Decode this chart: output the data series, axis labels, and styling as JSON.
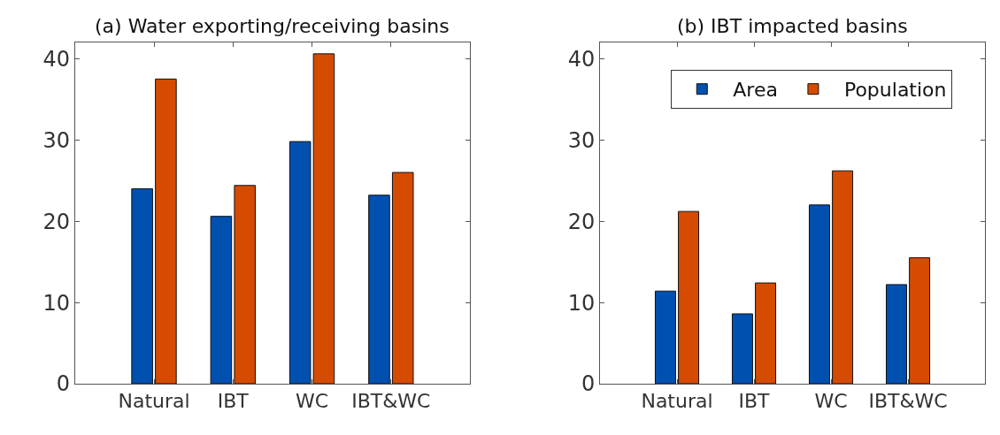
{
  "chart_data": [
    {
      "type": "bar",
      "title": "(a) Water exporting/receiving basins",
      "categories": [
        "Natural",
        "IBT",
        "WC",
        "IBT&WC"
      ],
      "series": [
        {
          "color": "#0050b0",
          "values": [
            24.0,
            20.6,
            29.8,
            23.2
          ]
        },
        {
          "color": "#d54b00",
          "values": [
            37.5,
            24.4,
            40.6,
            26.0
          ]
        }
      ],
      "ylim": [
        0,
        42
      ],
      "yticks": [
        0,
        10,
        20,
        30,
        40
      ]
    },
    {
      "type": "bar",
      "title": "(b) IBT impacted basins",
      "categories": [
        "Natural",
        "IBT",
        "WC",
        "IBT&WC"
      ],
      "series": [
        {
          "name": "Area",
          "color": "#0050b0",
          "values": [
            11.4,
            8.6,
            22.0,
            12.2
          ]
        },
        {
          "name": "Population",
          "color": "#d54b00",
          "values": [
            21.2,
            12.4,
            26.2,
            15.5
          ]
        }
      ],
      "ylim": [
        0,
        42
      ],
      "yticks": [
        0,
        10,
        20,
        30,
        40
      ],
      "legend": "top"
    }
  ]
}
